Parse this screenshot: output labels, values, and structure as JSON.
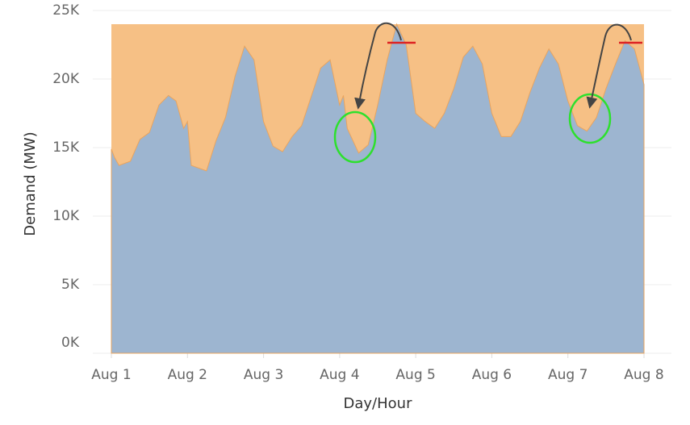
{
  "chart_data": {
    "type": "area",
    "x_label": "Day/Hour",
    "y_label": "Demand (MW)",
    "x": [
      0,
      0.04,
      0.1,
      0.25,
      0.375,
      0.5,
      0.625,
      0.75,
      0.85,
      0.95,
      1.0,
      1.05,
      1.25,
      1.375,
      1.5,
      1.625,
      1.75,
      1.875,
      2.0,
      2.125,
      2.25,
      2.375,
      2.5,
      2.625,
      2.75,
      2.875,
      3.0,
      3.05,
      3.1,
      3.25,
      3.375,
      3.5,
      3.625,
      3.75,
      3.875,
      4.0,
      4.125,
      4.25,
      4.375,
      4.5,
      4.625,
      4.75,
      4.875,
      5.0,
      5.125,
      5.25,
      5.375,
      5.5,
      5.625,
      5.75,
      5.875,
      6.0,
      6.125,
      6.25,
      6.375,
      6.5,
      6.625,
      6.75,
      6.875,
      7.0
    ],
    "values": [
      14.9,
      14.3,
      13.7,
      14.0,
      15.6,
      16.1,
      18.1,
      18.8,
      18.4,
      16.4,
      16.9,
      13.7,
      13.3,
      15.5,
      17.2,
      20.2,
      22.4,
      21.4,
      16.9,
      15.1,
      14.7,
      15.8,
      16.6,
      18.7,
      20.8,
      21.4,
      18.1,
      18.8,
      16.4,
      14.6,
      15.2,
      18.1,
      21.4,
      24.0,
      22.5,
      17.5,
      16.9,
      16.4,
      17.5,
      19.3,
      21.6,
      22.4,
      21.1,
      17.5,
      15.8,
      15.8,
      16.9,
      19.0,
      20.8,
      22.2,
      21.1,
      18.4,
      16.6,
      16.2,
      17.2,
      19.3,
      21.1,
      22.8,
      22.2,
      19.6
    ],
    "color": "#9db5d0",
    "ceiling": 24.0,
    "ceiling_color": "#f6c085",
    "xlim": [
      0,
      7
    ],
    "xticks": [
      {
        "value": 0,
        "label": "Aug 1"
      },
      {
        "value": 1,
        "label": "Aug 2"
      },
      {
        "value": 2,
        "label": "Aug 3"
      },
      {
        "value": 3,
        "label": "Aug 4"
      },
      {
        "value": 4,
        "label": "Aug 5"
      },
      {
        "value": 5,
        "label": "Aug 6"
      },
      {
        "value": 6,
        "label": "Aug 7"
      },
      {
        "value": 7,
        "label": "Aug 8"
      }
    ],
    "ylim": [
      0,
      25
    ],
    "yticks": [
      {
        "value": 0,
        "label": "0K"
      },
      {
        "value": 5,
        "label": "5K"
      },
      {
        "value": 10,
        "label": "10K"
      },
      {
        "value": 15,
        "label": "15K"
      },
      {
        "value": 20,
        "label": "20K"
      },
      {
        "value": 25,
        "label": "25K"
      }
    ],
    "grid": true
  }
}
